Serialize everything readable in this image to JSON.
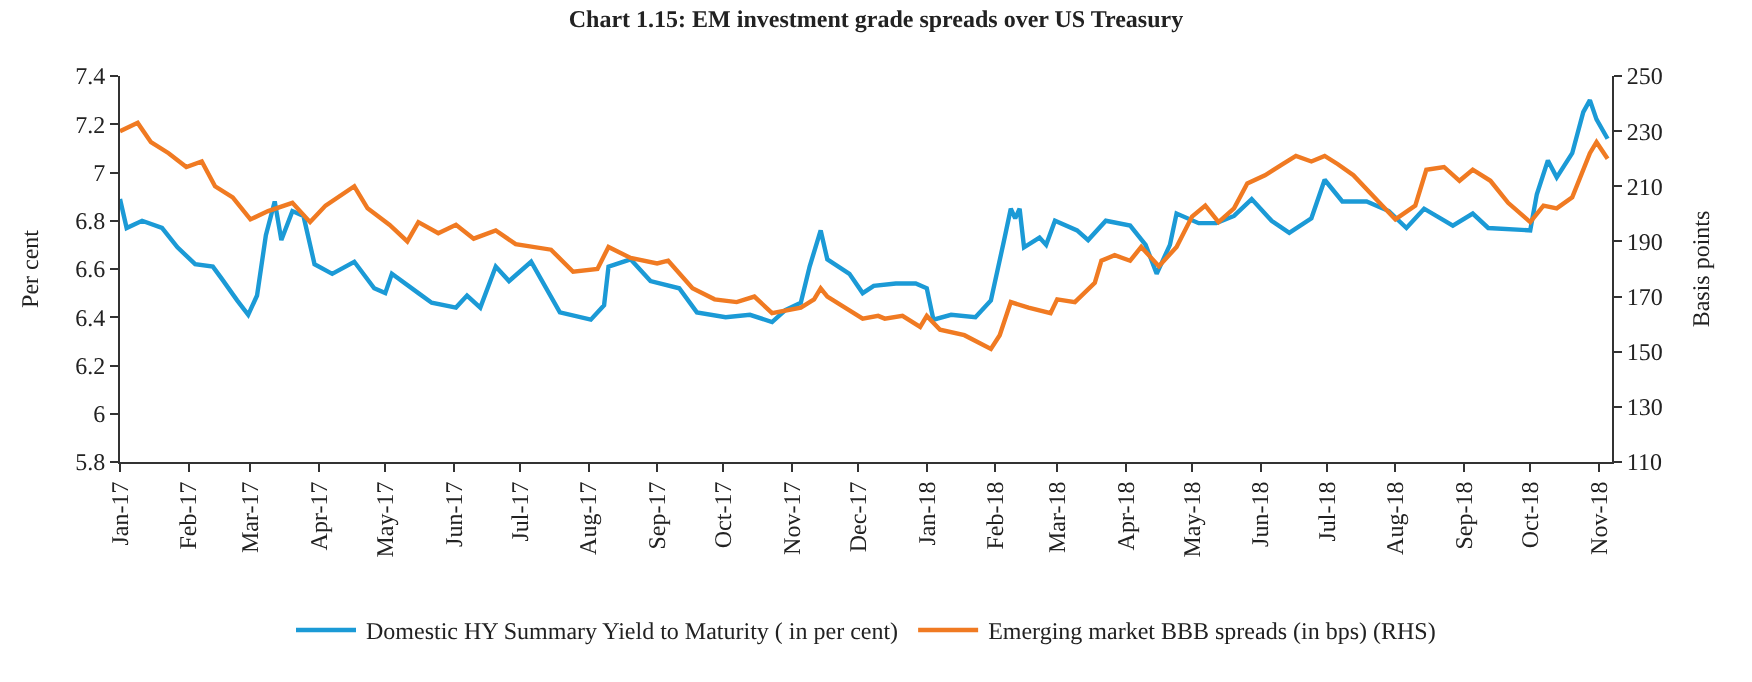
{
  "chart_data": {
    "type": "line",
    "title": "Chart 1.15: EM investment grade spreads over US Treasury",
    "ylabel": "Per cent",
    "y2label": "Basis points",
    "xlim": [
      "2017-01-01",
      "2018-11-07"
    ],
    "xticks": [
      {
        "value": "2017-01-01",
        "label": "Jan-17"
      },
      {
        "value": "2017-02-01",
        "label": "Feb-17"
      },
      {
        "value": "2017-03-01",
        "label": "Mar-17"
      },
      {
        "value": "2017-04-01",
        "label": "Apr-17"
      },
      {
        "value": "2017-05-01",
        "label": "May-17"
      },
      {
        "value": "2017-06-01",
        "label": "Jun-17"
      },
      {
        "value": "2017-07-01",
        "label": "Jul-17"
      },
      {
        "value": "2017-08-01",
        "label": "Aug-17"
      },
      {
        "value": "2017-09-01",
        "label": "Sep-17"
      },
      {
        "value": "2017-10-01",
        "label": "Oct-17"
      },
      {
        "value": "2017-11-01",
        "label": "Nov-17"
      },
      {
        "value": "2017-12-01",
        "label": "Dec-17"
      },
      {
        "value": "2018-01-01",
        "label": "Jan-18"
      },
      {
        "value": "2018-02-01",
        "label": "Feb-18"
      },
      {
        "value": "2018-03-01",
        "label": "Mar-18"
      },
      {
        "value": "2018-04-01",
        "label": "Apr-18"
      },
      {
        "value": "2018-05-01",
        "label": "May-18"
      },
      {
        "value": "2018-06-01",
        "label": "Jun-18"
      },
      {
        "value": "2018-07-01",
        "label": "Jul-18"
      },
      {
        "value": "2018-08-01",
        "label": "Aug-18"
      },
      {
        "value": "2018-09-01",
        "label": "Sep-18"
      },
      {
        "value": "2018-10-01",
        "label": "Oct-18"
      },
      {
        "value": "2018-11-01",
        "label": "Nov-18"
      }
    ],
    "ylim": [
      5.8,
      7.4
    ],
    "yticks": [
      5.8,
      6,
      6.2,
      6.4,
      6.6,
      6.8,
      7,
      7.2,
      7.4
    ],
    "y2lim": [
      110,
      250
    ],
    "y2ticks": [
      110,
      130,
      150,
      170,
      190,
      210,
      230,
      250
    ],
    "legend": "bottom",
    "marker": "none",
    "line_style": "solid",
    "series": [
      {
        "name": "Domestic HY Summary Yield to Maturity ( in per cent)",
        "color": "#1b9ad6",
        "x": [
          "2017-01-01",
          "2017-01-04",
          "2017-01-11",
          "2017-01-20",
          "2017-01-27",
          "2017-02-04",
          "2017-02-12",
          "2017-02-16",
          "2017-02-23",
          "2017-02-28",
          "2017-03-04",
          "2017-03-08",
          "2017-03-12",
          "2017-03-15",
          "2017-03-20",
          "2017-03-25",
          "2017-03-30",
          "2017-04-07",
          "2017-04-17",
          "2017-04-26",
          "2017-05-01",
          "2017-05-04",
          "2017-05-16",
          "2017-05-22",
          "2017-06-02",
          "2017-06-07",
          "2017-06-13",
          "2017-06-20",
          "2017-06-26",
          "2017-07-06",
          "2017-07-19",
          "2017-08-02",
          "2017-08-08",
          "2017-08-10",
          "2017-08-20",
          "2017-08-29",
          "2017-09-11",
          "2017-09-19",
          "2017-10-02",
          "2017-10-13",
          "2017-10-23",
          "2017-10-29",
          "2017-11-05",
          "2017-11-09",
          "2017-11-14",
          "2017-11-17",
          "2017-11-27",
          "2017-12-03",
          "2017-12-08",
          "2017-12-18",
          "2017-12-27",
          "2018-01-01",
          "2018-01-04",
          "2018-01-12",
          "2018-01-23",
          "2018-01-30",
          "2018-02-05",
          "2018-02-08",
          "2018-02-10",
          "2018-02-12",
          "2018-02-14",
          "2018-02-21",
          "2018-02-24",
          "2018-02-28",
          "2018-03-10",
          "2018-03-15",
          "2018-03-23",
          "2018-04-03",
          "2018-04-10",
          "2018-04-15",
          "2018-04-21",
          "2018-04-24",
          "2018-05-04",
          "2018-05-12",
          "2018-05-20",
          "2018-05-28",
          "2018-06-06",
          "2018-06-14",
          "2018-06-24",
          "2018-06-30",
          "2018-07-08",
          "2018-07-19",
          "2018-07-29",
          "2018-08-06",
          "2018-08-14",
          "2018-08-27",
          "2018-09-05",
          "2018-09-12",
          "2018-10-01",
          "2018-10-04",
          "2018-10-09",
          "2018-10-13",
          "2018-10-20",
          "2018-10-25",
          "2018-10-28",
          "2018-10-31",
          "2018-11-05"
        ],
        "values": [
          6.89,
          6.77,
          6.8,
          6.77,
          6.69,
          6.62,
          6.61,
          6.56,
          6.47,
          6.41,
          6.49,
          6.74,
          6.88,
          6.72,
          6.84,
          6.82,
          6.62,
          6.58,
          6.63,
          6.52,
          6.5,
          6.58,
          6.5,
          6.46,
          6.44,
          6.49,
          6.44,
          6.61,
          6.55,
          6.63,
          6.42,
          6.39,
          6.45,
          6.61,
          6.64,
          6.55,
          6.52,
          6.42,
          6.4,
          6.41,
          6.38,
          6.43,
          6.46,
          6.61,
          6.76,
          6.64,
          6.58,
          6.5,
          6.53,
          6.54,
          6.54,
          6.52,
          6.39,
          6.41,
          6.4,
          6.47,
          6.72,
          6.85,
          6.81,
          6.85,
          6.69,
          6.73,
          6.7,
          6.8,
          6.76,
          6.72,
          6.8,
          6.78,
          6.7,
          6.58,
          6.7,
          6.83,
          6.79,
          6.79,
          6.82,
          6.89,
          6.8,
          6.75,
          6.81,
          6.97,
          6.88,
          6.88,
          6.84,
          6.77,
          6.85,
          6.78,
          6.83,
          6.77,
          6.76,
          6.91,
          7.05,
          6.98,
          7.08,
          7.25,
          7.3,
          7.22,
          7.14
        ]
      },
      {
        "name": "Emerging market BBB spreads (in bps) (RHS)",
        "color": "#f07a22",
        "axis": "y2",
        "x": [
          "2017-01-01",
          "2017-01-09",
          "2017-01-15",
          "2017-01-23",
          "2017-01-31",
          "2017-02-07",
          "2017-02-13",
          "2017-02-21",
          "2017-03-01",
          "2017-03-09",
          "2017-03-20",
          "2017-03-28",
          "2017-04-04",
          "2017-04-17",
          "2017-04-23",
          "2017-05-03",
          "2017-05-11",
          "2017-05-16",
          "2017-05-25",
          "2017-06-02",
          "2017-06-10",
          "2017-06-20",
          "2017-06-29",
          "2017-07-15",
          "2017-07-25",
          "2017-08-05",
          "2017-08-10",
          "2017-08-20",
          "2017-09-01",
          "2017-09-06",
          "2017-09-17",
          "2017-09-27",
          "2017-10-07",
          "2017-10-15",
          "2017-10-23",
          "2017-11-05",
          "2017-11-11",
          "2017-11-14",
          "2017-11-17",
          "2017-11-27",
          "2017-12-03",
          "2017-12-10",
          "2017-12-13",
          "2017-12-21",
          "2017-12-29",
          "2018-01-01",
          "2018-01-07",
          "2018-01-18",
          "2018-01-30",
          "2018-02-03",
          "2018-02-08",
          "2018-02-16",
          "2018-02-26",
          "2018-03-01",
          "2018-03-09",
          "2018-03-18",
          "2018-03-21",
          "2018-03-27",
          "2018-04-03",
          "2018-04-08",
          "2018-04-16",
          "2018-04-24",
          "2018-05-01",
          "2018-05-07",
          "2018-05-13",
          "2018-05-20",
          "2018-05-26",
          "2018-06-03",
          "2018-06-11",
          "2018-06-17",
          "2018-06-24",
          "2018-06-30",
          "2018-07-06",
          "2018-07-13",
          "2018-07-26",
          "2018-08-01",
          "2018-08-10",
          "2018-08-15",
          "2018-08-23",
          "2018-08-30",
          "2018-09-05",
          "2018-09-13",
          "2018-09-21",
          "2018-10-01",
          "2018-10-07",
          "2018-10-13",
          "2018-10-20",
          "2018-10-28",
          "2018-10-31",
          "2018-11-05"
        ],
        "values": [
          230,
          233,
          226,
          222,
          217,
          219,
          210,
          206,
          198,
          201,
          204,
          197,
          203,
          210,
          202,
          196,
          190,
          197,
          193,
          196,
          191,
          194,
          189,
          187,
          179,
          180,
          188,
          184,
          182,
          183,
          173,
          169,
          168,
          170,
          164,
          166,
          169,
          173,
          170,
          165,
          162,
          163,
          162,
          163,
          159,
          163,
          158,
          156,
          151,
          156,
          168,
          166,
          164,
          169,
          168,
          175,
          183,
          185,
          183,
          188,
          181,
          188,
          199,
          203,
          197,
          202,
          211,
          214,
          218,
          221,
          219,
          221,
          218,
          214,
          203,
          198,
          203,
          216,
          217,
          212,
          216,
          212,
          204,
          197,
          203,
          202,
          206,
          222,
          226,
          220
        ]
      }
    ]
  }
}
